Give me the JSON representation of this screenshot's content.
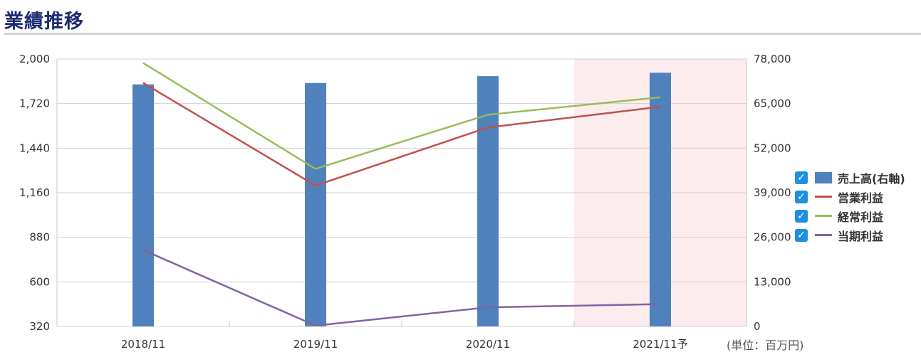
{
  "page": {
    "title": "業績推移",
    "unit_note": "(単位：百万円)"
  },
  "chart_data": {
    "type": "bar",
    "categories": [
      "2018/11",
      "2019/11",
      "2020/11",
      "2021/11予"
    ],
    "forecast_index": 3,
    "left_axis": {
      "min": 320,
      "max": 2000,
      "ticks": [
        "2,000",
        "1,720",
        "1,440",
        "1,160",
        "880",
        "600",
        "320"
      ]
    },
    "right_axis": {
      "min": 0,
      "max": 78000,
      "ticks": [
        "78,000",
        "65,000",
        "52,000",
        "39,000",
        "26,000",
        "13,000",
        "0"
      ]
    },
    "series": [
      {
        "name": "売上高(右軸)",
        "type": "bar",
        "axis": "right",
        "color": "#4f81bd",
        "values": [
          70600,
          71000,
          73000,
          74000
        ]
      },
      {
        "name": "営業利益",
        "type": "line",
        "axis": "left",
        "color": "#c0504d",
        "values": [
          1850,
          1205,
          1570,
          1700
        ]
      },
      {
        "name": "経常利益",
        "type": "line",
        "axis": "left",
        "color": "#9bbb59",
        "values": [
          1975,
          1310,
          1650,
          1760
        ]
      },
      {
        "name": "当期利益",
        "type": "line",
        "axis": "left",
        "color": "#8064a2",
        "values": [
          800,
          325,
          440,
          460
        ]
      }
    ],
    "legend_position": "right",
    "grid": true
  }
}
